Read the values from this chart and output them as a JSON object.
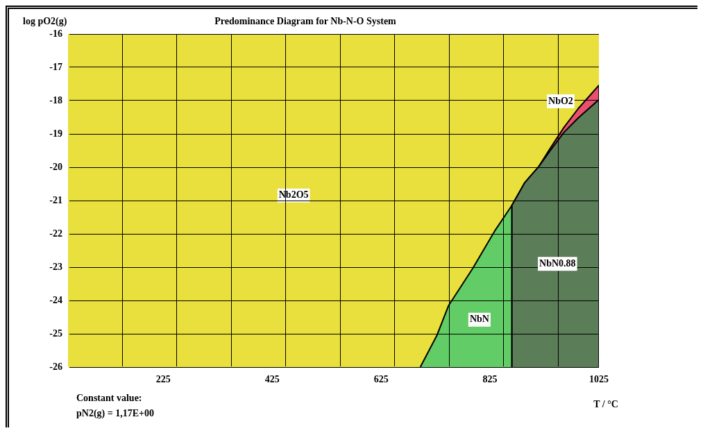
{
  "chart_data": {
    "type": "area",
    "title": "Predominance Diagram for Nb-N-O System",
    "xlabel": "T / °C",
    "ylabel": "log pO2(g)",
    "xlim": [
      50,
      1025
    ],
    "ylim": [
      -26,
      -16
    ],
    "xticks": [
      {
        "value": 150,
        "label": null
      },
      225,
      {
        "value": 250,
        "label": null
      },
      {
        "value": 350,
        "label": null
      },
      425,
      {
        "value": 450,
        "label": null
      },
      {
        "value": 550,
        "label": null
      },
      625,
      {
        "value": 650,
        "label": null
      },
      {
        "value": 750,
        "label": null
      },
      825,
      {
        "value": 850,
        "label": null
      },
      {
        "value": 950,
        "label": null
      },
      1025
    ],
    "yticks": [
      -16,
      -17,
      -18,
      -19,
      -20,
      -21,
      -22,
      -23,
      -24,
      -25,
      -26
    ],
    "grid": true,
    "legend": false,
    "bands": [
      {
        "axis": "y",
        "from": -26,
        "to": -16,
        "label": "Nb2O5",
        "color": "#e9df3d"
      }
    ],
    "series": [
      {
        "color": "#ea4f6e",
        "x": [
          865,
          865,
          889,
          914.5,
          935.7,
          961,
          987,
          1025,
          1025
        ],
        "values": [
          -26,
          -21.15,
          -20.46,
          -19.98,
          -19.43,
          -18.8,
          -18.24,
          -17.54,
          -26
        ]
      },
      {
        "color": "#5b7d58",
        "x": [
          865,
          865,
          889,
          914.5,
          935.7,
          961,
          987,
          1025,
          1025
        ],
        "values": [
          -26,
          -21.15,
          -20.46,
          -19.98,
          -19.5,
          -18.95,
          -18.52,
          -17.97,
          -26
        ]
      },
      {
        "color": "#62cd66",
        "x": [
          697,
          727.7,
          749,
          793.5,
          833.4,
          865,
          865
        ],
        "values": [
          -26,
          -25.04,
          -24.15,
          -23.03,
          -21.92,
          -21.15,
          -26
        ]
      }
    ],
    "annotations": [
      "NbO2",
      "NbN0.88",
      "NbN",
      "Constant value:",
      "pN2(g) = 1,17E+00"
    ]
  }
}
